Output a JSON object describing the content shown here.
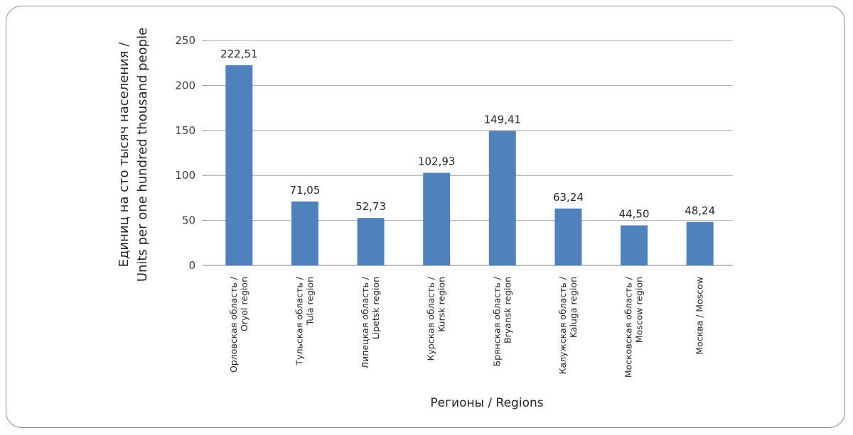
{
  "chart_data": {
    "type": "bar",
    "xlabel": "Регионы / Regions",
    "ylabel_lines": [
      "Единиц на сто тысяч населения /",
      "Units per one hundred thousand people"
    ],
    "ylim": [
      0,
      250
    ],
    "yticks": [
      0,
      50,
      100,
      150,
      200,
      250
    ],
    "grid": true,
    "categories": [
      [
        "Орловская область /",
        "Oryol region"
      ],
      [
        "Тульская область /",
        "Tula region"
      ],
      [
        "Липецкая область /",
        "Lipetsk region"
      ],
      [
        "Курская область /",
        "Kursk region"
      ],
      [
        "Брянская область /",
        "Bryansk region"
      ],
      [
        "Калужская область /",
        "Kaluga region"
      ],
      [
        "Московская область /",
        "Moscow region"
      ],
      [
        "Москва / Moscow"
      ]
    ],
    "values": [
      222.51,
      71.05,
      52.73,
      102.93,
      149.41,
      63.24,
      44.5,
      48.24
    ],
    "value_labels": [
      "222,51",
      "71,05",
      "52,73",
      "102,93",
      "149,41",
      "63,24",
      "44,50",
      "48,24"
    ],
    "bar_color": "#4f81bd",
    "grid_color": "#a6a6a6"
  }
}
